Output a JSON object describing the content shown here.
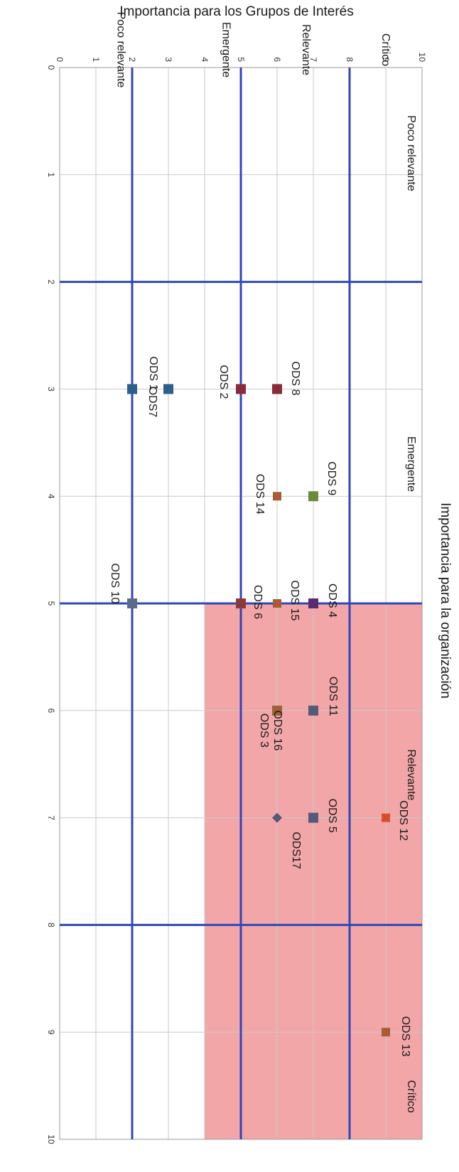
{
  "chart_data": {
    "type": "scatter",
    "title": "Importancia para la organización",
    "xlabel": "Importancia para la organización",
    "ylabel": "Importancia para los Grupos de Interés",
    "xlim": [
      0,
      10
    ],
    "ylim": [
      0,
      10
    ],
    "x_ticks": [
      "0",
      "1",
      "2",
      "3",
      "4",
      "5",
      "6",
      "7",
      "8",
      "9",
      "10"
    ],
    "y_ticks": [
      "0",
      "1",
      "2",
      "3",
      "4",
      "5",
      "6",
      "7",
      "8",
      "9",
      "10"
    ],
    "grid": true,
    "highlight_region": {
      "x": [
        5,
        10
      ],
      "y": [
        4,
        10
      ],
      "color": "#f2a6a8"
    },
    "threshold_lines": {
      "x": [
        2,
        5,
        8
      ],
      "y": [
        2,
        5,
        8
      ],
      "color": "#2f47b8"
    },
    "x_zones": [
      {
        "label": "Poco relevante",
        "x": 0.8
      },
      {
        "label": "Emergente",
        "x": 3.7
      },
      {
        "label": "Relevante",
        "x": 6.6
      },
      {
        "label": "Crítico",
        "x": 9.6
      }
    ],
    "y_zones": [
      {
        "label": "Crítico",
        "y": 9
      },
      {
        "label": "Relevante",
        "y": 6.8
      },
      {
        "label": "Emergente",
        "y": 4.6
      },
      {
        "label": "Poco relevante",
        "y": 1.7
      }
    ],
    "points": [
      {
        "label": "ODS 1",
        "x": 3,
        "y": 3,
        "color": "#2d5f8a",
        "marker": "square"
      },
      {
        "label": "ODS 2",
        "x": 3,
        "y": 5,
        "color": "#8b2a3a",
        "marker": "square"
      },
      {
        "label": "ODS 3",
        "x": 6,
        "y": 6,
        "color": "#8a6a3a",
        "marker": "square"
      },
      {
        "label": "ODS 4",
        "x": 5,
        "y": 7,
        "color": "#5a2a6e",
        "marker": "square"
      },
      {
        "label": "ODS 5",
        "x": 7,
        "y": 7,
        "color": "#545a78",
        "marker": "square"
      },
      {
        "label": "ODS 6",
        "x": 5,
        "y": 5,
        "color": "#8b3a3a",
        "marker": "square"
      },
      {
        "label": "ODS7",
        "x": 3,
        "y": 2,
        "color": "#2d5f8a",
        "marker": "square"
      },
      {
        "label": "ODS 8",
        "x": 3,
        "y": 6,
        "color": "#8b2a3a",
        "marker": "square"
      },
      {
        "label": "ODS 9",
        "x": 4,
        "y": 7,
        "color": "#6b8a3a",
        "marker": "square"
      },
      {
        "label": "ODS 10",
        "x": 5,
        "y": 2,
        "color": "#5a6a8a",
        "marker": "square"
      },
      {
        "label": "ODS 11",
        "x": 6,
        "y": 7,
        "color": "#545a78",
        "marker": "square"
      },
      {
        "label": "ODS 12",
        "x": 7,
        "y": 9,
        "color": "#d9532e",
        "marker": "x"
      },
      {
        "label": "ODS 13",
        "x": 9,
        "y": 9,
        "color": "#8a6a3a",
        "marker": "x"
      },
      {
        "label": "ODS 14",
        "x": 4,
        "y": 6,
        "color": "#8a6a3a",
        "marker": "x"
      },
      {
        "label": "ODS 15",
        "x": 5,
        "y": 6,
        "color": "#8a6a3a",
        "marker": "x"
      },
      {
        "label": "ODS 16",
        "x": 6,
        "y": 6,
        "color": "#8a6a3a",
        "marker": "x"
      },
      {
        "label": "ODS17",
        "x": 7,
        "y": 6,
        "color": "#545a78",
        "marker": "diamond"
      }
    ]
  }
}
